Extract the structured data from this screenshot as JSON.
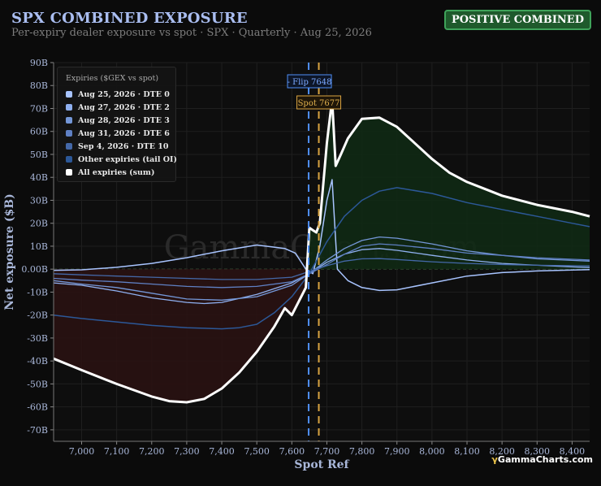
{
  "header": {
    "title": "SPX COMBINED EXPOSURE",
    "subtitle": "Per-expiry dealer exposure vs spot · SPX · Quarterly · Aug 25, 2026",
    "badge": "POSITIVE COMBINED"
  },
  "watermark": "GammaCharts.com",
  "footer_logo": {
    "mark": "γ",
    "text": "GammaCharts.com"
  },
  "colors": {
    "background": "#0b0b0b",
    "positive_fill": "#0f2a14",
    "negative_fill": "#2a1212",
    "flip_line": "#4f8ff7",
    "spot_line": "#d9a441",
    "badge_bg": "#1f5a2c"
  },
  "chart_data": {
    "type": "line",
    "title": "SPX COMBINED EXPOSURE",
    "subtitle": "Per-expiry dealer exposure vs spot · SPX · Quarterly · Aug 25, 2026",
    "xlabel": "Spot Ref",
    "ylabel": "Net exposure ($B)",
    "xlim": [
      6920,
      8450
    ],
    "ylim": [
      -75,
      90
    ],
    "x_ticks": [
      7000,
      7100,
      7200,
      7300,
      7400,
      7500,
      7600,
      7700,
      7800,
      7900,
      8000,
      8100,
      8200,
      8300,
      8400
    ],
    "x_tick_labels": [
      "7,000",
      "7,100",
      "7,200",
      "7,300",
      "7,400",
      "7,500",
      "7,600",
      "7,700",
      "7,800",
      "7,900",
      "8,000",
      "8,100",
      "8,200",
      "8,300",
      "8,400"
    ],
    "y_ticks": [
      90,
      80,
      70,
      60,
      50,
      40,
      30,
      20,
      10,
      0,
      -10,
      -20,
      -30,
      -40,
      -50,
      -60,
      -70
    ],
    "y_tick_labels": [
      "90B",
      "80B",
      "70B",
      "60B",
      "50B",
      "40B",
      "30B",
      "20B",
      "10B",
      "0.00B",
      "-10B",
      "-20B",
      "-30B",
      "-40B",
      "-50B",
      "-60B",
      "-70B"
    ],
    "grid": true,
    "legend_title": "Expiries ($GEX vs spot)",
    "legend_position": "top-left",
    "annotations": [
      {
        "label": "- Flip 7648",
        "x": 7648
      },
      {
        "label": "Spot 7677",
        "x": 7677
      }
    ],
    "series": [
      {
        "name": "Aug 25, 2026 · DTE 0",
        "color": "#a8c4ff",
        "width": 1.5,
        "x": [
          6920,
          7000,
          7100,
          7200,
          7300,
          7400,
          7500,
          7580,
          7610,
          7640,
          7660,
          7680,
          7700,
          7715,
          7730,
          7760,
          7800,
          7850,
          7900,
          8000,
          8100,
          8200,
          8300,
          8400,
          8450
        ],
        "y": [
          -0.5,
          -0.3,
          0.8,
          2.5,
          5,
          8,
          10.5,
          9,
          7,
          0,
          -2,
          10,
          30,
          39,
          0,
          -5,
          -8,
          -9.3,
          -9,
          -6,
          -3,
          -1.5,
          -0.8,
          -0.4,
          -0.2
        ]
      },
      {
        "name": "Aug 27, 2026 · DTE 2",
        "color": "#8fb0f0",
        "width": 1.3,
        "x": [
          6920,
          7000,
          7100,
          7200,
          7300,
          7350,
          7400,
          7500,
          7600,
          7650,
          7700,
          7750,
          7800,
          7850,
          7900,
          8000,
          8100,
          8200,
          8300,
          8400,
          8450
        ],
        "y": [
          -6,
          -7,
          -9.5,
          -12.5,
          -14.5,
          -15,
          -14.5,
          -11,
          -6,
          -2,
          3,
          6.5,
          8.5,
          9,
          8.2,
          6,
          4,
          2.5,
          1.7,
          1,
          0.7
        ]
      },
      {
        "name": "Aug 28, 2026 · DTE 3",
        "color": "#7497d8",
        "width": 1.3,
        "x": [
          6920,
          7000,
          7100,
          7200,
          7300,
          7400,
          7500,
          7600,
          7650,
          7700,
          7750,
          7800,
          7850,
          7900,
          8000,
          8100,
          8200,
          8300,
          8400,
          8450
        ],
        "y": [
          -5,
          -6.5,
          -8,
          -10.5,
          -13,
          -13.5,
          -12,
          -7,
          -2,
          4,
          9,
          12.5,
          14,
          13.5,
          11,
          8,
          6,
          4.5,
          3.8,
          3.5
        ]
      },
      {
        "name": "Aug 31, 2026 · DTE 6",
        "color": "#5f80c4",
        "width": 1.3,
        "x": [
          6920,
          7000,
          7100,
          7200,
          7300,
          7400,
          7500,
          7600,
          7650,
          7700,
          7750,
          7800,
          7850,
          7900,
          8000,
          8100,
          8200,
          8300,
          8400,
          8450
        ],
        "y": [
          -4,
          -4.8,
          -5.5,
          -6.5,
          -7.5,
          -8,
          -7.5,
          -5.5,
          -2,
          2,
          6.5,
          10,
          11,
          10.5,
          9,
          7,
          6,
          5,
          4.3,
          4
        ]
      },
      {
        "name": "Sep 4, 2026 · DTE 10",
        "color": "#4468a8",
        "width": 1.3,
        "x": [
          6920,
          7000,
          7100,
          7200,
          7300,
          7400,
          7500,
          7600,
          7650,
          7700,
          7750,
          7800,
          7850,
          7900,
          8000,
          8100,
          8200,
          8300,
          8400,
          8450
        ],
        "y": [
          -2,
          -2.5,
          -3,
          -3.5,
          -4,
          -4.5,
          -4.5,
          -3.5,
          -1,
          1.5,
          3.5,
          4.5,
          4.6,
          4.2,
          3.2,
          2.5,
          2,
          1.7,
          1.5,
          1.4
        ]
      },
      {
        "name": "Other expiries (tail OI)",
        "color": "#2c5898",
        "width": 1.5,
        "x": [
          6920,
          7000,
          7100,
          7200,
          7300,
          7400,
          7450,
          7500,
          7550,
          7600,
          7650,
          7700,
          7750,
          7800,
          7850,
          7900,
          8000,
          8100,
          8200,
          8300,
          8400,
          8450
        ],
        "y": [
          -20,
          -21.5,
          -23,
          -24.5,
          -25.5,
          -26,
          -25.5,
          -24,
          -19,
          -12,
          -2,
          12,
          23,
          30,
          34,
          35.5,
          33,
          29,
          26,
          23,
          20,
          18.5
        ]
      },
      {
        "name": "All expiries (sum)",
        "color": "#ffffff",
        "width": 3,
        "x": [
          6920,
          7000,
          7100,
          7200,
          7250,
          7300,
          7350,
          7400,
          7450,
          7500,
          7550,
          7580,
          7600,
          7620,
          7640,
          7650,
          7660,
          7670,
          7680,
          7700,
          7715,
          7725,
          7740,
          7760,
          7800,
          7850,
          7900,
          7950,
          8000,
          8050,
          8100,
          8150,
          8200,
          8300,
          8400,
          8450
        ],
        "y": [
          -39,
          -44,
          -50,
          -55.5,
          -57.5,
          -58,
          -56.5,
          -52,
          -45,
          -36,
          -25,
          -17,
          -20,
          -14,
          -8,
          18,
          17,
          16,
          20,
          55,
          74,
          45,
          50,
          57,
          65.5,
          66,
          62,
          55,
          48,
          42,
          38,
          35,
          32,
          28,
          25,
          23
        ]
      }
    ]
  }
}
